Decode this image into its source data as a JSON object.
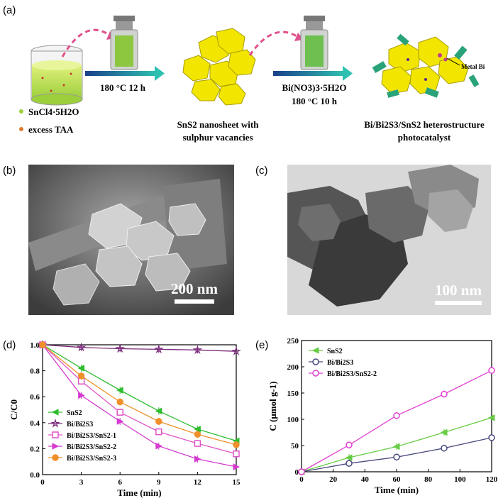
{
  "panels": {
    "a": "(a)",
    "b": "(b)",
    "c": "(c)",
    "d": "(d)",
    "e": "(e)"
  },
  "schematic": {
    "step1": "180 °C  12 h",
    "step2_line1": "Bi(NO3)3·5H2O",
    "step2_line2": "180 °C  10 h",
    "metal_bi": "Metal Bi",
    "reagent1": "SnCl4·5H2O",
    "reagent2": "excess TAA",
    "product1_line1": "SnS2 nanosheet with",
    "product1_line2": "sulphur vacancies",
    "product2_line1": "Bi/Bi2S3/SnS2 heterostructure",
    "product2_line2": "photocatalyst",
    "colors": {
      "arrow": "#2a9aa8",
      "dashed_arrow": "#e0508c",
      "liquid": "#c8e65a",
      "crystal": "#f2e600"
    }
  },
  "micrographs": {
    "sem_scale": "200 nm",
    "tem_scale": "100 nm"
  },
  "chart_data": [
    {
      "type": "line",
      "panel": "(d)",
      "xlabel": "Time (min)",
      "ylabel": "C/C0",
      "xlim": [
        0,
        15
      ],
      "ylim": [
        0.0,
        1.0
      ],
      "xticks": [
        0,
        3,
        6,
        9,
        12,
        15
      ],
      "yticks": [
        0.0,
        0.2,
        0.4,
        0.6,
        0.8,
        1.0
      ],
      "x": [
        0,
        3,
        6,
        9,
        12,
        15
      ],
      "legend_position": "bottom-left",
      "series": [
        {
          "name": "SnS2",
          "values": [
            1.0,
            0.82,
            0.65,
            0.49,
            0.35,
            0.26
          ],
          "color": "#2ebd2e",
          "marker": "tri-left"
        },
        {
          "name": "Bi/Bi2S3",
          "values": [
            1.0,
            0.98,
            0.97,
            0.965,
            0.96,
            0.95
          ],
          "color": "#7a2a7a",
          "marker": "star"
        },
        {
          "name": "Bi/Bi2S3/SnS2-1",
          "values": [
            1.0,
            0.72,
            0.48,
            0.33,
            0.24,
            0.16
          ],
          "color": "#e055c8",
          "marker": "square"
        },
        {
          "name": "Bi/Bi2S3/SnS2-2",
          "values": [
            1.0,
            0.61,
            0.41,
            0.22,
            0.12,
            0.06
          ],
          "color": "#d43bd0",
          "marker": "tri-right"
        },
        {
          "name": "Bi/Bi2S3/SnS2-3",
          "values": [
            1.0,
            0.76,
            0.56,
            0.41,
            0.31,
            0.23
          ],
          "color": "#f0902a",
          "marker": "circle"
        }
      ]
    },
    {
      "type": "line",
      "panel": "(e)",
      "xlabel": "Time (min)",
      "ylabel": "C (μmol g-1)",
      "xlim": [
        0,
        120
      ],
      "ylim": [
        0,
        250
      ],
      "xticks": [
        0,
        20,
        40,
        60,
        80,
        100,
        120
      ],
      "yticks": [
        0,
        50,
        100,
        150,
        200,
        250
      ],
      "x": [
        0,
        30,
        60,
        90,
        120
      ],
      "legend_position": "top-left",
      "series": [
        {
          "name": "SnS2",
          "values": [
            0,
            27,
            48,
            75,
            103
          ],
          "color": "#66cc44",
          "marker": "tri-left"
        },
        {
          "name": "Bi/Bi2S3",
          "values": [
            0,
            16,
            28,
            45,
            65
          ],
          "color": "#4a4a80",
          "marker": "circle-half"
        },
        {
          "name": "Bi/Bi2S3/SnS2-2",
          "values": [
            0,
            51,
            107,
            148,
            193
          ],
          "color": "#e040d0",
          "marker": "circle-half"
        }
      ]
    }
  ]
}
